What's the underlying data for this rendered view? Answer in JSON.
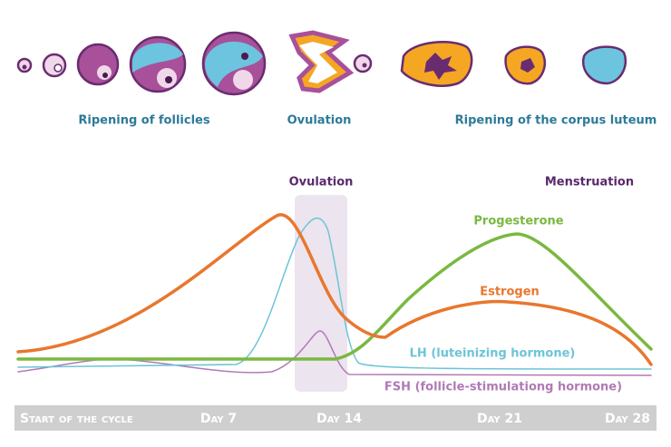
{
  "stages": {
    "follicles": "Ripening of follicles",
    "ovulation": "Ovulation",
    "corpus_luteum": "Ripening of the corpus luteum"
  },
  "phases": {
    "ovulation": "Ovulation",
    "menstruation": "Menstruation"
  },
  "hormones": {
    "progesterone": "Progesterone",
    "estrogen": "Estrogen",
    "lh": "LH (luteinizing hormone)",
    "fsh": "FSH (follicle-stimulationg hormone)"
  },
  "timeline": [
    "Start of the cycle",
    "Day 7",
    "Day 14",
    "Day 21",
    "Day 28"
  ]
}
